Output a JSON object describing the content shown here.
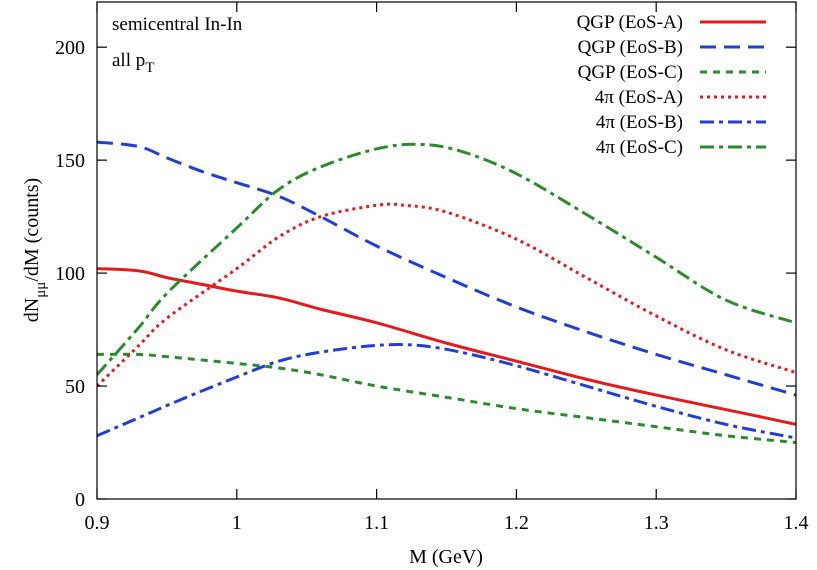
{
  "chart_data": {
    "type": "line",
    "title": "",
    "xlabel": "M (GeV)",
    "ylabel": "dN_{μμ}/dM (counts)",
    "ylabel_main": "dN",
    "ylabel_sub": "μμ",
    "ylabel_rest": "/dM (counts)",
    "xlim": [
      0.9,
      1.4
    ],
    "ylim": [
      0,
      220
    ],
    "x_ticks": [
      0.9,
      1.0,
      1.1,
      1.2,
      1.3,
      1.4
    ],
    "x_tick_labels": [
      "0.9",
      "1",
      "1.1",
      "1.2",
      "1.3",
      "1.4"
    ],
    "y_ticks": [
      0,
      50,
      100,
      150,
      200
    ],
    "y_tick_labels": [
      "0",
      "50",
      "100",
      "150",
      "200"
    ],
    "grid": false,
    "legend_position": "top-right",
    "annotations": [
      {
        "text": "semicentral In-In"
      },
      {
        "text_main": "all p",
        "text_sub": "T"
      }
    ],
    "series": [
      {
        "name": "QGP (EoS-A)",
        "color": "#e41a1c",
        "style": "solid",
        "x": [
          0.9,
          0.93,
          0.95,
          0.975,
          1.0,
          1.03,
          1.06,
          1.1,
          1.15,
          1.2,
          1.25,
          1.3,
          1.37,
          1.4
        ],
        "y": [
          102,
          101,
          98,
          95,
          92,
          89,
          84,
          78,
          69,
          61,
          53,
          46,
          37,
          33
        ]
      },
      {
        "name": "QGP (EoS-B)",
        "color": "#1f3fd6",
        "style": "dashed",
        "x": [
          0.9,
          0.93,
          0.95,
          0.975,
          1.0,
          1.03,
          1.06,
          1.1,
          1.15,
          1.2,
          1.25,
          1.3,
          1.35,
          1.4
        ],
        "y": [
          158,
          156,
          151,
          145,
          140,
          134,
          125,
          112,
          98,
          85,
          74,
          64,
          55,
          46
        ]
      },
      {
        "name": "QGP (EoS-C)",
        "color": "#2a8c2a",
        "style": "dotted-dash",
        "x": [
          0.9,
          0.93,
          0.95,
          1.0,
          1.03,
          1.06,
          1.1,
          1.15,
          1.2,
          1.25,
          1.3,
          1.35,
          1.4
        ],
        "y": [
          64,
          64,
          63,
          60,
          58,
          55,
          50,
          45,
          40,
          36,
          32,
          28,
          25
        ]
      },
      {
        "name": "4π (EoS-A)",
        "color": "#e41a1c",
        "style": "dotted",
        "x": [
          0.9,
          0.93,
          0.95,
          1.0,
          1.03,
          1.06,
          1.1,
          1.12,
          1.15,
          1.2,
          1.25,
          1.3,
          1.35,
          1.4
        ],
        "y": [
          50,
          68,
          80,
          102,
          116,
          125,
          130,
          130,
          127,
          115,
          98,
          81,
          66,
          56
        ]
      },
      {
        "name": "4π (EoS-B)",
        "color": "#1f3fd6",
        "style": "dash-dot",
        "x": [
          0.9,
          0.93,
          0.96,
          1.0,
          1.03,
          1.06,
          1.1,
          1.13,
          1.16,
          1.2,
          1.25,
          1.3,
          1.35,
          1.4
        ],
        "y": [
          28,
          36,
          44,
          54,
          61,
          65,
          68,
          68,
          65,
          59,
          50,
          41,
          33,
          27
        ]
      },
      {
        "name": "4π (EoS-C)",
        "color": "#2a8c2a",
        "style": "dash-dot",
        "x": [
          0.9,
          0.93,
          0.95,
          1.0,
          1.03,
          1.06,
          1.1,
          1.13,
          1.16,
          1.2,
          1.25,
          1.3,
          1.35,
          1.4
        ],
        "y": [
          55,
          76,
          91,
          120,
          137,
          147,
          155,
          157,
          154,
          144,
          126,
          107,
          88,
          78
        ]
      }
    ]
  }
}
